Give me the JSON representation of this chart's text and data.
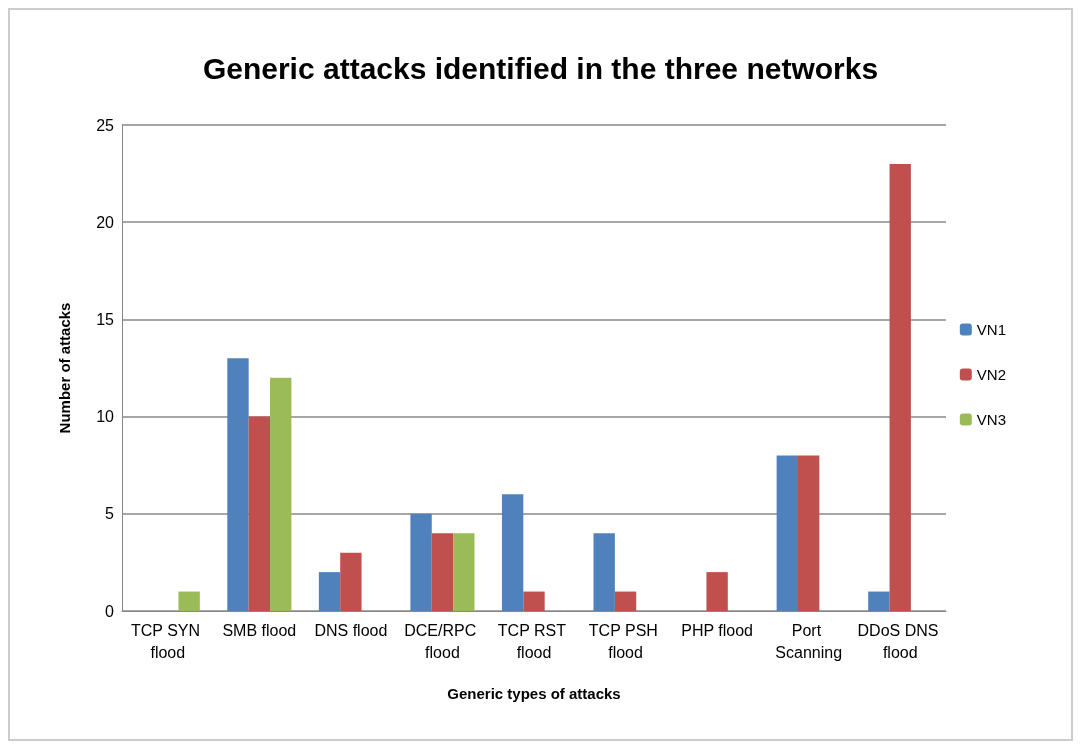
{
  "chart_data": {
    "type": "bar",
    "title": "Generic attacks identified in the three networks",
    "xlabel": "Generic types of attacks",
    "ylabel": "Number of attacks",
    "categories": [
      "TCP SYN flood",
      "SMB flood",
      "DNS flood",
      "DCE/RPC flood",
      "TCP RST flood",
      "TCP PSH flood",
      "PHP flood",
      "Port Scanning",
      "DDoS DNS flood"
    ],
    "series": [
      {
        "name": "VN1",
        "color": "#4f81bd",
        "values": [
          0,
          13,
          2,
          5,
          6,
          4,
          0,
          8,
          1
        ]
      },
      {
        "name": "VN2",
        "color": "#c0504d",
        "values": [
          0,
          10,
          3,
          4,
          1,
          1,
          2,
          8,
          23
        ]
      },
      {
        "name": "VN3",
        "color": "#9bbb59",
        "values": [
          1,
          12,
          0,
          4,
          0,
          0,
          0,
          0,
          0
        ]
      }
    ],
    "ylim": [
      0,
      25
    ],
    "yticks": [
      0,
      5,
      10,
      15,
      20,
      25
    ],
    "grid": "y",
    "legend": "right"
  }
}
